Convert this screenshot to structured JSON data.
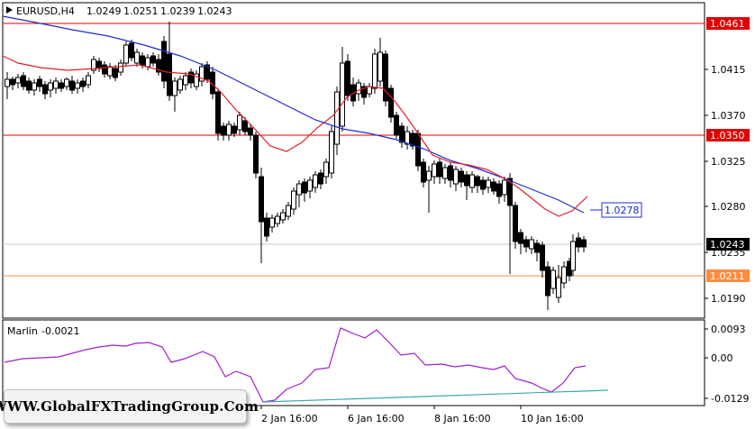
{
  "header": {
    "symbol": "EURUSD,H4",
    "open": "1.0249",
    "high": "1.0251",
    "low": "1.0239",
    "close": "1.0243"
  },
  "price_axis": {
    "ticks": [
      "1.0415",
      "1.0370",
      "1.0325",
      "1.0280",
      "1.0235",
      "1.0190"
    ],
    "levels": {
      "top_red": "1.0461",
      "mid_red": "1.0350",
      "bid": "1.0243",
      "orange": "1.0211",
      "ma_label": "1.0278"
    }
  },
  "indicator": {
    "name": "Marlin",
    "value": "-0.0021",
    "ticks": [
      "0.0093",
      "0.00",
      "-0.0129"
    ]
  },
  "time_axis": {
    "labels": [
      "2 Jan 16:00",
      "6 Jan 16:00",
      "8 Jan 16:00",
      "10 Jan 16:00"
    ]
  },
  "watermark": "WWW.GlobalFXTradingGroup.Com",
  "colors": {
    "red_level": "#e00000",
    "orange_level": "#ff8c40",
    "blue_ma": "#1f2dcc",
    "red_ma": "#e0202a",
    "marlin": "#a020c8",
    "signal": "#3aa8b0"
  }
}
